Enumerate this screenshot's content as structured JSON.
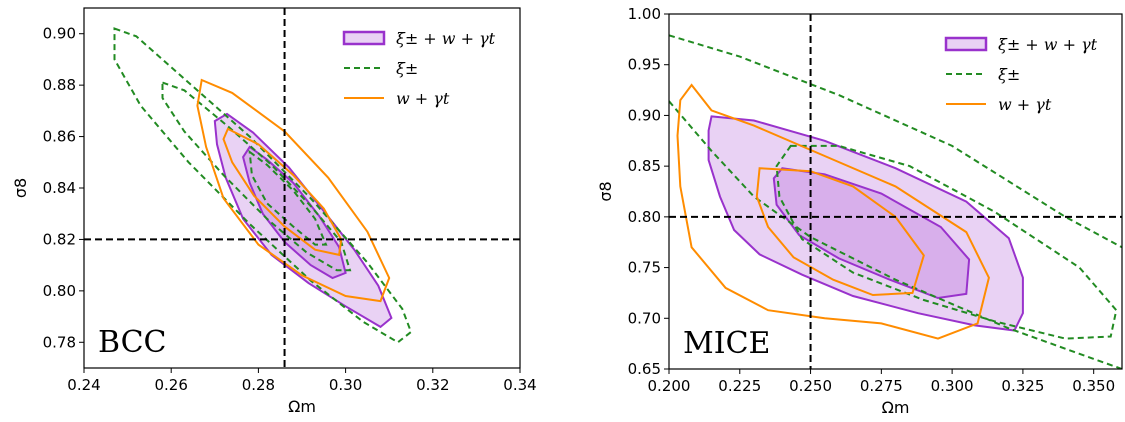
{
  "chart_data": [
    {
      "type": "contour",
      "panel_label": "BCC",
      "xlabel": "Ωm",
      "ylabel": "σ8",
      "xlim": [
        0.24,
        0.34
      ],
      "ylim": [
        0.77,
        0.91
      ],
      "xticks": [
        0.24,
        0.26,
        0.28,
        0.3,
        0.32,
        0.34
      ],
      "yticks": [
        0.78,
        0.8,
        0.82,
        0.84,
        0.86,
        0.88,
        0.9
      ],
      "xtick_labels": [
        "0.24",
        "0.26",
        "0.28",
        "0.30",
        "0.32",
        "0.34"
      ],
      "ytick_labels": [
        "0.78",
        "0.80",
        "0.82",
        "0.84",
        "0.86",
        "0.88",
        "0.90"
      ],
      "fiducial": {
        "x": 0.286,
        "y": 0.82
      },
      "legend": {
        "placement": "top-right",
        "entries": [
          "ξ± + w + γt",
          "ξ±",
          "w + γt"
        ]
      },
      "series": [
        {
          "name": "ξ± + w + γt",
          "color": "#9932CC",
          "style": "filled",
          "contours": [
            {
              "level": "95%",
              "points": [
                [
                  0.2728,
                  0.8688
                ],
                [
                  0.2788,
                  0.8615
                ],
                [
                  0.287,
                  0.848
                ],
                [
                  0.295,
                  0.831
                ],
                [
                  0.302,
                  0.816
                ],
                [
                  0.3075,
                  0.802
                ],
                [
                  0.3105,
                  0.7895
                ],
                [
                  0.308,
                  0.786
                ],
                [
                  0.3,
                  0.794
                ],
                [
                  0.2915,
                  0.803
                ],
                [
                  0.283,
                  0.814
                ],
                [
                  0.2765,
                  0.828
                ],
                [
                  0.2725,
                  0.844
                ],
                [
                  0.2705,
                  0.857
                ],
                [
                  0.27,
                  0.866
                ]
              ]
            },
            {
              "level": "68%",
              "points": [
                [
                  0.278,
                  0.856
                ],
                [
                  0.282,
                  0.851
                ],
                [
                  0.288,
                  0.842
                ],
                [
                  0.294,
                  0.829
                ],
                [
                  0.2985,
                  0.817
                ],
                [
                  0.3,
                  0.807
                ],
                [
                  0.297,
                  0.805
                ],
                [
                  0.292,
                  0.81
                ],
                [
                  0.286,
                  0.819
                ],
                [
                  0.281,
                  0.83
                ],
                [
                  0.278,
                  0.842
                ],
                [
                  0.2765,
                  0.852
                ]
              ]
            }
          ]
        },
        {
          "name": "ξ±",
          "color": "#228B22",
          "style": "dashed",
          "contours": [
            {
              "level": "95%",
              "points": [
                [
                  0.247,
                  0.902
                ],
                [
                  0.252,
                  0.899
                ],
                [
                  0.264,
                  0.881
                ],
                [
                  0.278,
                  0.86
                ],
                [
                  0.292,
                  0.836
                ],
                [
                  0.305,
                  0.811
                ],
                [
                  0.313,
                  0.793
                ],
                [
                  0.315,
                  0.784
                ],
                [
                  0.312,
                  0.78
                ],
                [
                  0.304,
                  0.788
                ],
                [
                  0.292,
                  0.804
                ],
                [
                  0.278,
                  0.826
                ],
                [
                  0.264,
                  0.85
                ],
                [
                  0.253,
                  0.872
                ],
                [
                  0.247,
                  0.89
                ]
              ]
            },
            {
              "level": "68%",
              "points": [
                [
                  0.258,
                  0.881
                ],
                [
                  0.263,
                  0.878
                ],
                [
                  0.273,
                  0.864
                ],
                [
                  0.283,
                  0.849
                ],
                [
                  0.292,
                  0.833
                ],
                [
                  0.299,
                  0.819
                ],
                [
                  0.301,
                  0.808
                ],
                [
                  0.298,
                  0.808
                ],
                [
                  0.291,
                  0.815
                ],
                [
                  0.282,
                  0.828
                ],
                [
                  0.272,
                  0.845
                ],
                [
                  0.263,
                  0.862
                ],
                [
                  0.258,
                  0.875
                ]
              ]
            },
            {
              "level": "inner",
              "points": [
                [
                  0.278,
                  0.854
                ],
                [
                  0.282,
                  0.849
                ],
                [
                  0.288,
                  0.839
                ],
                [
                  0.293,
                  0.828
                ],
                [
                  0.2955,
                  0.818
                ],
                [
                  0.293,
                  0.818
                ],
                [
                  0.288,
                  0.825
                ],
                [
                  0.282,
                  0.834
                ],
                [
                  0.2785,
                  0.845
                ]
              ]
            }
          ]
        },
        {
          "name": "w + γt",
          "color": "#FF8C00",
          "style": "solid",
          "contours": [
            {
              "level": "95%",
              "points": [
                [
                  0.267,
                  0.882
                ],
                [
                  0.274,
                  0.877
                ],
                [
                  0.286,
                  0.862
                ],
                [
                  0.296,
                  0.844
                ],
                [
                  0.305,
                  0.823
                ],
                [
                  0.31,
                  0.805
                ],
                [
                  0.308,
                  0.796
                ],
                [
                  0.3,
                  0.798
                ],
                [
                  0.29,
                  0.806
                ],
                [
                  0.28,
                  0.818
                ],
                [
                  0.272,
                  0.836
                ],
                [
                  0.268,
                  0.856
                ],
                [
                  0.266,
                  0.872
                ]
              ]
            },
            {
              "level": "68%",
              "points": [
                [
                  0.273,
                  0.863
                ],
                [
                  0.28,
                  0.857
                ],
                [
                  0.288,
                  0.845
                ],
                [
                  0.295,
                  0.832
                ],
                [
                  0.299,
                  0.82
                ],
                [
                  0.2985,
                  0.814
                ],
                [
                  0.293,
                  0.816
                ],
                [
                  0.286,
                  0.825
                ],
                [
                  0.279,
                  0.837
                ],
                [
                  0.274,
                  0.85
                ],
                [
                  0.272,
                  0.859
                ]
              ]
            }
          ]
        }
      ]
    },
    {
      "type": "contour",
      "panel_label": "MICE",
      "xlabel": "Ωm",
      "ylabel": "σ8",
      "xlim": [
        0.2,
        0.36
      ],
      "ylim": [
        0.65,
        1.0
      ],
      "xticks": [
        0.2,
        0.225,
        0.25,
        0.275,
        0.3,
        0.325,
        0.35
      ],
      "yticks": [
        0.65,
        0.7,
        0.75,
        0.8,
        0.85,
        0.9,
        0.95,
        1.0
      ],
      "xtick_labels": [
        "0.200",
        "0.225",
        "0.250",
        "0.275",
        "0.300",
        "0.325",
        "0.350"
      ],
      "ytick_labels": [
        "0.65",
        "0.70",
        "0.75",
        "0.80",
        "0.85",
        "0.90",
        "0.95",
        "1.00"
      ],
      "fiducial": {
        "x": 0.25,
        "y": 0.8
      },
      "legend": {
        "placement": "top-right",
        "entries": [
          "ξ± + w + γt",
          "ξ±",
          "w + γt"
        ]
      },
      "series": [
        {
          "name": "ξ± + w + γt",
          "color": "#9932CC",
          "style": "filled",
          "contours": [
            {
              "level": "95%",
              "points": [
                [
                  0.215,
                  0.899
                ],
                [
                  0.23,
                  0.895
                ],
                [
                  0.255,
                  0.875
                ],
                [
                  0.28,
                  0.848
                ],
                [
                  0.305,
                  0.815
                ],
                [
                  0.32,
                  0.779
                ],
                [
                  0.325,
                  0.74
                ],
                [
                  0.325,
                  0.705
                ],
                [
                  0.322,
                  0.688
                ],
                [
                  0.308,
                  0.693
                ],
                [
                  0.288,
                  0.705
                ],
                [
                  0.265,
                  0.722
                ],
                [
                  0.247,
                  0.743
                ],
                [
                  0.232,
                  0.763
                ],
                [
                  0.223,
                  0.787
                ],
                [
                  0.218,
                  0.82
                ],
                [
                  0.214,
                  0.856
                ],
                [
                  0.214,
                  0.885
                ]
              ]
            },
            {
              "level": "68%",
              "points": [
                [
                  0.24,
                  0.848
                ],
                [
                  0.255,
                  0.842
                ],
                [
                  0.275,
                  0.823
                ],
                [
                  0.296,
                  0.79
                ],
                [
                  0.306,
                  0.758
                ],
                [
                  0.305,
                  0.724
                ],
                [
                  0.295,
                  0.72
                ],
                [
                  0.278,
                  0.738
                ],
                [
                  0.26,
                  0.759
                ],
                [
                  0.246,
                  0.782
                ],
                [
                  0.238,
                  0.812
                ],
                [
                  0.237,
                  0.838
                ]
              ]
            }
          ]
        },
        {
          "name": "ξ±",
          "color": "#228B22",
          "style": "dashed",
          "contours": [
            {
              "level": "95%",
              "points": [
                [
                  0.2,
                  0.979
                ],
                [
                  0.225,
                  0.958
                ],
                [
                  0.26,
                  0.92
                ],
                [
                  0.3,
                  0.87
                ],
                [
                  0.34,
                  0.8
                ],
                [
                  0.36,
                  0.77
                ]
              ]
            },
            {
              "level": "95%-lower",
              "points": [
                [
                  0.2,
                  0.914
                ],
                [
                  0.215,
                  0.865
                ],
                [
                  0.23,
                  0.82
                ],
                [
                  0.25,
                  0.78
                ],
                [
                  0.28,
                  0.738
                ],
                [
                  0.32,
                  0.69
                ],
                [
                  0.35,
                  0.66
                ],
                [
                  0.36,
                  0.65
                ]
              ]
            },
            {
              "level": "68%",
              "points": [
                [
                  0.243,
                  0.87
                ],
                [
                  0.26,
                  0.87
                ],
                [
                  0.285,
                  0.85
                ],
                [
                  0.315,
                  0.805
                ],
                [
                  0.345,
                  0.75
                ],
                [
                  0.358,
                  0.708
                ],
                [
                  0.356,
                  0.682
                ],
                [
                  0.34,
                  0.68
                ],
                [
                  0.315,
                  0.697
                ],
                [
                  0.29,
                  0.718
                ],
                [
                  0.265,
                  0.745
                ],
                [
                  0.247,
                  0.778
                ],
                [
                  0.239,
                  0.82
                ],
                [
                  0.238,
                  0.85
                ]
              ]
            }
          ]
        },
        {
          "name": "w + γt",
          "color": "#FF8C00",
          "style": "solid",
          "contours": [
            {
              "level": "95%",
              "points": [
                [
                  0.208,
                  0.93
                ],
                [
                  0.215,
                  0.905
                ],
                [
                  0.23,
                  0.89
                ],
                [
                  0.255,
                  0.86
                ],
                [
                  0.28,
                  0.83
                ],
                [
                  0.305,
                  0.785
                ],
                [
                  0.313,
                  0.74
                ],
                [
                  0.309,
                  0.695
                ],
                [
                  0.295,
                  0.68
                ],
                [
                  0.275,
                  0.695
                ],
                [
                  0.255,
                  0.7
                ],
                [
                  0.235,
                  0.708
                ],
                [
                  0.22,
                  0.73
                ],
                [
                  0.208,
                  0.77
                ],
                [
                  0.204,
                  0.83
                ],
                [
                  0.203,
                  0.88
                ],
                [
                  0.204,
                  0.915
                ]
              ]
            },
            {
              "level": "68%",
              "points": [
                [
                  0.232,
                  0.848
                ],
                [
                  0.25,
                  0.845
                ],
                [
                  0.265,
                  0.83
                ],
                [
                  0.28,
                  0.8
                ],
                [
                  0.29,
                  0.762
                ],
                [
                  0.286,
                  0.725
                ],
                [
                  0.272,
                  0.723
                ],
                [
                  0.258,
                  0.738
                ],
                [
                  0.244,
                  0.76
                ],
                [
                  0.235,
                  0.79
                ],
                [
                  0.231,
                  0.82
                ]
              ]
            }
          ]
        }
      ]
    }
  ]
}
